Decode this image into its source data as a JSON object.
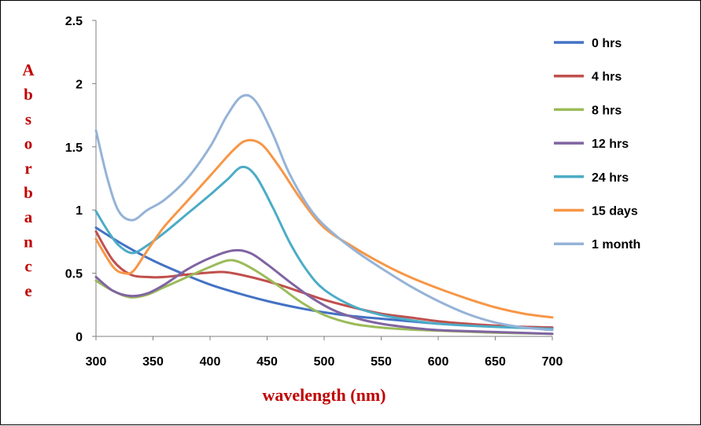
{
  "chart_data": {
    "type": "line",
    "title": "",
    "xlabel": "wavelength (nm)",
    "ylabel": "Absorbance",
    "xlim": [
      300,
      700
    ],
    "ylim": [
      0,
      2.5
    ],
    "xticks": [
      "300",
      "350",
      "400",
      "450",
      "500",
      "550",
      "600",
      "650",
      "700"
    ],
    "yticks": [
      "0",
      "0.5",
      "1",
      "1.5",
      "2",
      "2.5"
    ],
    "grid": false,
    "legend_position": "right",
    "series": [
      {
        "name": "0 hrs",
        "color": "#4472c4",
        "points": [
          [
            300,
            0.86
          ],
          [
            325,
            0.72
          ],
          [
            350,
            0.6
          ],
          [
            375,
            0.5
          ],
          [
            400,
            0.41
          ],
          [
            425,
            0.34
          ],
          [
            450,
            0.28
          ],
          [
            475,
            0.23
          ],
          [
            500,
            0.19
          ],
          [
            525,
            0.16
          ],
          [
            550,
            0.14
          ],
          [
            575,
            0.12
          ],
          [
            600,
            0.1
          ],
          [
            625,
            0.09
          ],
          [
            650,
            0.08
          ],
          [
            675,
            0.075
          ],
          [
            700,
            0.07
          ]
        ]
      },
      {
        "name": "4 hrs",
        "color": "#c0504d",
        "points": [
          [
            300,
            0.83
          ],
          [
            315,
            0.6
          ],
          [
            330,
            0.49
          ],
          [
            345,
            0.47
          ],
          [
            360,
            0.47
          ],
          [
            380,
            0.49
          ],
          [
            400,
            0.505
          ],
          [
            410,
            0.51
          ],
          [
            420,
            0.5
          ],
          [
            440,
            0.46
          ],
          [
            460,
            0.41
          ],
          [
            480,
            0.35
          ],
          [
            500,
            0.29
          ],
          [
            525,
            0.23
          ],
          [
            550,
            0.18
          ],
          [
            575,
            0.15
          ],
          [
            600,
            0.12
          ],
          [
            625,
            0.1
          ],
          [
            650,
            0.085
          ],
          [
            675,
            0.075
          ],
          [
            700,
            0.07
          ]
        ]
      },
      {
        "name": "8 hrs",
        "color": "#9bbb59",
        "points": [
          [
            300,
            0.44
          ],
          [
            315,
            0.36
          ],
          [
            330,
            0.31
          ],
          [
            345,
            0.33
          ],
          [
            360,
            0.39
          ],
          [
            380,
            0.47
          ],
          [
            400,
            0.55
          ],
          [
            415,
            0.6
          ],
          [
            425,
            0.59
          ],
          [
            440,
            0.52
          ],
          [
            460,
            0.4
          ],
          [
            480,
            0.27
          ],
          [
            500,
            0.17
          ],
          [
            525,
            0.1
          ],
          [
            550,
            0.07
          ],
          [
            575,
            0.055
          ],
          [
            600,
            0.045
          ],
          [
            650,
            0.03
          ],
          [
            700,
            0.02
          ]
        ]
      },
      {
        "name": "12 hrs",
        "color": "#8064a2",
        "points": [
          [
            300,
            0.47
          ],
          [
            315,
            0.36
          ],
          [
            330,
            0.32
          ],
          [
            345,
            0.34
          ],
          [
            360,
            0.41
          ],
          [
            380,
            0.53
          ],
          [
            400,
            0.62
          ],
          [
            420,
            0.68
          ],
          [
            435,
            0.66
          ],
          [
            450,
            0.57
          ],
          [
            470,
            0.43
          ],
          [
            490,
            0.3
          ],
          [
            510,
            0.2
          ],
          [
            530,
            0.14
          ],
          [
            550,
            0.1
          ],
          [
            575,
            0.07
          ],
          [
            600,
            0.05
          ],
          [
            650,
            0.035
          ],
          [
            700,
            0.02
          ]
        ]
      },
      {
        "name": "24 hrs",
        "color": "#4bacc6",
        "points": [
          [
            300,
            0.99
          ],
          [
            310,
            0.84
          ],
          [
            320,
            0.72
          ],
          [
            332,
            0.66
          ],
          [
            345,
            0.72
          ],
          [
            360,
            0.82
          ],
          [
            380,
            0.97
          ],
          [
            400,
            1.12
          ],
          [
            415,
            1.24
          ],
          [
            428,
            1.34
          ],
          [
            440,
            1.27
          ],
          [
            455,
            1.02
          ],
          [
            470,
            0.74
          ],
          [
            485,
            0.52
          ],
          [
            500,
            0.37
          ],
          [
            525,
            0.24
          ],
          [
            550,
            0.17
          ],
          [
            575,
            0.13
          ],
          [
            600,
            0.1
          ],
          [
            650,
            0.075
          ],
          [
            700,
            0.06
          ]
        ]
      },
      {
        "name": "15 days",
        "color": "#f79646",
        "points": [
          [
            300,
            0.77
          ],
          [
            315,
            0.55
          ],
          [
            325,
            0.5
          ],
          [
            333,
            0.52
          ],
          [
            345,
            0.68
          ],
          [
            360,
            0.87
          ],
          [
            380,
            1.07
          ],
          [
            400,
            1.27
          ],
          [
            420,
            1.47
          ],
          [
            432,
            1.55
          ],
          [
            445,
            1.52
          ],
          [
            460,
            1.35
          ],
          [
            480,
            1.08
          ],
          [
            500,
            0.86
          ],
          [
            525,
            0.71
          ],
          [
            550,
            0.58
          ],
          [
            575,
            0.47
          ],
          [
            600,
            0.38
          ],
          [
            625,
            0.3
          ],
          [
            650,
            0.23
          ],
          [
            675,
            0.18
          ],
          [
            700,
            0.15
          ]
        ]
      },
      {
        "name": "1 month",
        "color": "#95b3d7",
        "points": [
          [
            300,
            1.63
          ],
          [
            310,
            1.25
          ],
          [
            320,
            0.99
          ],
          [
            332,
            0.92
          ],
          [
            345,
            1.0
          ],
          [
            360,
            1.08
          ],
          [
            380,
            1.25
          ],
          [
            400,
            1.5
          ],
          [
            415,
            1.75
          ],
          [
            428,
            1.9
          ],
          [
            440,
            1.86
          ],
          [
            455,
            1.6
          ],
          [
            470,
            1.28
          ],
          [
            490,
            0.98
          ],
          [
            510,
            0.8
          ],
          [
            530,
            0.66
          ],
          [
            550,
            0.54
          ],
          [
            575,
            0.4
          ],
          [
            600,
            0.28
          ],
          [
            625,
            0.18
          ],
          [
            650,
            0.11
          ],
          [
            675,
            0.07
          ],
          [
            700,
            0.05
          ]
        ]
      }
    ]
  }
}
